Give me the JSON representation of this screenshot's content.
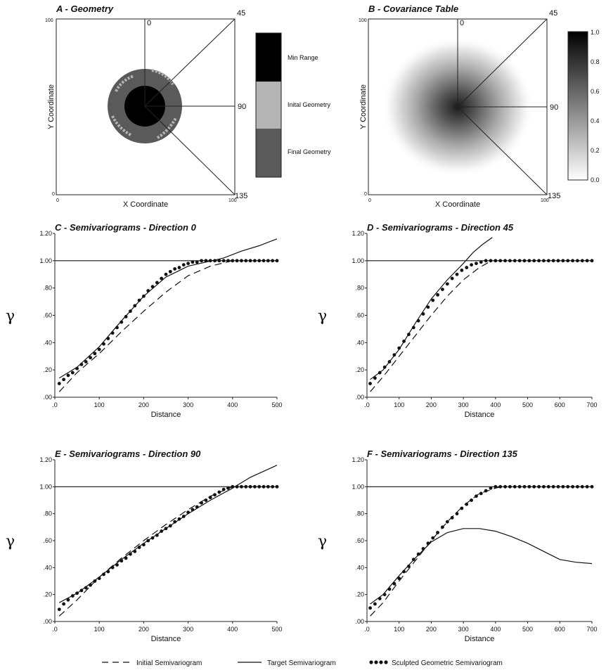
{
  "panels": {
    "A": {
      "title": "A - Geometry",
      "xlabel": "X Coordinate",
      "ylabel": "Y Coordinate",
      "corner_labels": {
        "bottom_left": "0",
        "top_left": "100",
        "bottom_right": "100"
      },
      "direction_labels": [
        "0",
        "45",
        "90",
        "135"
      ],
      "legend": [
        {
          "label": "Min Range",
          "color": "#000000"
        },
        {
          "label": "Inital Geometry",
          "color": "#b4b4b4"
        },
        {
          "label": "Final Geometry",
          "color": "#5a5a5a"
        }
      ]
    },
    "B": {
      "title": "B - Covariance Table",
      "xlabel": "X Coordinate",
      "ylabel": "Y Coordinate",
      "corner_labels": {
        "bottom_left": "0",
        "top_left": "100",
        "bottom_right": "100"
      },
      "direction_labels": [
        "0",
        "45",
        "90",
        "135"
      ],
      "colorbar_ticks": [
        "1.0",
        "0.8",
        "0.6",
        "0.4",
        "0.2",
        "0.0"
      ]
    }
  },
  "chart_data": [
    {
      "type": "line",
      "title": "C - Semivariograms - Direction 0",
      "xlabel": "Distance",
      "ylabel": "γ",
      "xlim": [
        0,
        500
      ],
      "ylim": [
        0,
        1.2
      ],
      "xticks": [
        ".0",
        "100",
        "200",
        "300",
        "400",
        "500"
      ],
      "yticks": [
        ".00",
        ".20",
        ".40",
        ".60",
        ".80",
        "1.00",
        "1.20"
      ],
      "sill": 1.0,
      "series": [
        {
          "name": "Initial Semivariogram",
          "style": "dashed",
          "x": [
            10,
            50,
            100,
            150,
            200,
            250,
            300,
            350,
            400,
            410
          ],
          "y": [
            0.04,
            0.18,
            0.32,
            0.48,
            0.63,
            0.77,
            0.89,
            0.96,
            1.0,
            1.0
          ]
        },
        {
          "name": "Target Semivariogram",
          "style": "solid",
          "x": [
            10,
            50,
            100,
            150,
            200,
            250,
            300,
            340,
            380,
            420,
            460,
            500
          ],
          "y": [
            0.14,
            0.22,
            0.37,
            0.56,
            0.74,
            0.88,
            0.96,
            0.99,
            1.02,
            1.07,
            1.11,
            1.16
          ]
        },
        {
          "name": "Sculpted Geometric Semivariogram",
          "style": "dots",
          "x": [
            10,
            20,
            30,
            40,
            50,
            60,
            70,
            80,
            90,
            100,
            110,
            120,
            130,
            140,
            150,
            160,
            170,
            180,
            190,
            200,
            210,
            220,
            230,
            240,
            250,
            260,
            270,
            280,
            290,
            300,
            310,
            320,
            330,
            340,
            350,
            360,
            370,
            380,
            390,
            400,
            410,
            420,
            430,
            440,
            450,
            460,
            470,
            480,
            490,
            500
          ],
          "y": [
            0.1,
            0.13,
            0.16,
            0.18,
            0.21,
            0.24,
            0.26,
            0.29,
            0.32,
            0.35,
            0.39,
            0.43,
            0.47,
            0.51,
            0.55,
            0.59,
            0.63,
            0.67,
            0.71,
            0.74,
            0.78,
            0.81,
            0.84,
            0.87,
            0.9,
            0.92,
            0.94,
            0.95,
            0.97,
            0.98,
            0.99,
            0.99,
            1.0,
            1.0,
            1.0,
            1.0,
            1.0,
            1.0,
            1.0,
            1.0,
            1.0,
            1.0,
            1.0,
            1.0,
            1.0,
            1.0,
            1.0,
            1.0,
            1.0,
            1.0
          ]
        }
      ]
    },
    {
      "type": "line",
      "title": "D - Semivariograms - Direction 45",
      "xlabel": "Distance",
      "ylabel": "γ",
      "xlim": [
        0,
        700
      ],
      "ylim": [
        0,
        1.2
      ],
      "xticks": [
        ".0",
        "100",
        "200",
        "300",
        "400",
        "500",
        "600",
        "700"
      ],
      "yticks": [
        ".00",
        ".20",
        ".40",
        ".60",
        ".80",
        "1.00",
        "1.20"
      ],
      "sill": 1.0,
      "series": [
        {
          "name": "Initial Semivariogram",
          "style": "dashed",
          "x": [
            10,
            50,
            100,
            150,
            200,
            250,
            300,
            350,
            380
          ],
          "y": [
            0.04,
            0.15,
            0.3,
            0.45,
            0.6,
            0.74,
            0.86,
            0.95,
            0.99
          ]
        },
        {
          "name": "Target Semivariogram",
          "style": "solid",
          "x": [
            10,
            50,
            100,
            150,
            200,
            250,
            300,
            330,
            360,
            390
          ],
          "y": [
            0.13,
            0.2,
            0.35,
            0.54,
            0.72,
            0.86,
            0.98,
            1.06,
            1.12,
            1.17
          ]
        },
        {
          "name": "Sculpted Geometric Semivariogram",
          "style": "dots",
          "x": [
            10,
            25,
            40,
            55,
            70,
            85,
            100,
            115,
            130,
            145,
            160,
            175,
            190,
            205,
            220,
            235,
            250,
            265,
            280,
            295,
            310,
            325,
            340,
            355,
            370,
            385,
            400,
            415,
            430,
            445,
            460,
            475,
            490,
            505,
            520,
            535,
            550,
            565,
            580,
            595,
            610,
            625,
            640,
            655,
            670,
            685,
            700
          ],
          "y": [
            0.1,
            0.14,
            0.18,
            0.22,
            0.26,
            0.31,
            0.36,
            0.41,
            0.46,
            0.51,
            0.56,
            0.61,
            0.66,
            0.71,
            0.75,
            0.79,
            0.83,
            0.87,
            0.9,
            0.93,
            0.95,
            0.97,
            0.98,
            0.99,
            1.0,
            1.0,
            1.0,
            1.0,
            1.0,
            1.0,
            1.0,
            1.0,
            1.0,
            1.0,
            1.0,
            1.0,
            1.0,
            1.0,
            1.0,
            1.0,
            1.0,
            1.0,
            1.0,
            1.0,
            1.0,
            1.0,
            1.0
          ]
        }
      ]
    },
    {
      "type": "line",
      "title": "E - Semivariograms - Direction 90",
      "xlabel": "Distance",
      "ylabel": "γ",
      "xlim": [
        0,
        500
      ],
      "ylim": [
        0,
        1.2
      ],
      "xticks": [
        ".0",
        "100",
        "200",
        "300",
        "400",
        "500"
      ],
      "yticks": [
        ".00",
        ".20",
        ".40",
        ".60",
        ".80",
        "1.00",
        "1.20"
      ],
      "sill": 1.0,
      "series": [
        {
          "name": "Initial Semivariogram",
          "style": "dashed",
          "x": [
            10,
            50,
            100,
            150,
            200,
            250,
            300,
            350,
            400
          ],
          "y": [
            0.04,
            0.16,
            0.33,
            0.47,
            0.6,
            0.72,
            0.83,
            0.93,
            1.0
          ]
        },
        {
          "name": "Target Semivariogram",
          "style": "solid",
          "x": [
            10,
            50,
            100,
            150,
            200,
            250,
            300,
            350,
            400,
            420,
            440,
            460,
            480,
            500
          ],
          "y": [
            0.14,
            0.21,
            0.33,
            0.46,
            0.58,
            0.69,
            0.8,
            0.9,
            0.99,
            1.03,
            1.07,
            1.1,
            1.13,
            1.16
          ]
        },
        {
          "name": "Sculpted Geometric Semivariogram",
          "style": "dots",
          "x": [
            10,
            20,
            30,
            40,
            50,
            60,
            70,
            80,
            90,
            100,
            110,
            120,
            130,
            140,
            150,
            160,
            170,
            180,
            190,
            200,
            210,
            220,
            230,
            240,
            250,
            260,
            270,
            280,
            290,
            300,
            310,
            320,
            330,
            340,
            350,
            360,
            370,
            380,
            390,
            400,
            410,
            420,
            430,
            440,
            450,
            460,
            470,
            480,
            490,
            500
          ],
          "y": [
            0.09,
            0.13,
            0.16,
            0.19,
            0.21,
            0.23,
            0.25,
            0.27,
            0.3,
            0.32,
            0.35,
            0.37,
            0.4,
            0.42,
            0.45,
            0.47,
            0.5,
            0.52,
            0.55,
            0.57,
            0.6,
            0.62,
            0.64,
            0.67,
            0.69,
            0.71,
            0.74,
            0.76,
            0.78,
            0.81,
            0.83,
            0.85,
            0.88,
            0.9,
            0.92,
            0.94,
            0.96,
            0.98,
            0.99,
            1.0,
            1.0,
            1.0,
            1.0,
            1.0,
            1.0,
            1.0,
            1.0,
            1.0,
            1.0,
            1.0
          ]
        }
      ]
    },
    {
      "type": "line",
      "title": "F - Semivariograms - Direction 135",
      "xlabel": "Distance",
      "ylabel": "γ",
      "xlim": [
        0,
        700
      ],
      "ylim": [
        0,
        1.2
      ],
      "xticks": [
        ".0",
        "100",
        "200",
        "300",
        "400",
        "500",
        "600",
        "700"
      ],
      "yticks": [
        ".00",
        ".20",
        ".40",
        ".60",
        ".80",
        "1.00",
        "1.20"
      ],
      "sill": 1.0,
      "series": [
        {
          "name": "Initial Semivariogram",
          "style": "dashed",
          "x": [
            10,
            50,
            100,
            150,
            200,
            250,
            300,
            350,
            400,
            420
          ],
          "y": [
            0.04,
            0.14,
            0.3,
            0.45,
            0.6,
            0.74,
            0.86,
            0.95,
            0.99,
            1.0
          ]
        },
        {
          "name": "Target Semivariogram",
          "style": "solid",
          "x": [
            10,
            50,
            100,
            150,
            200,
            250,
            300,
            350,
            400,
            450,
            500,
            550,
            600,
            650,
            700
          ],
          "y": [
            0.13,
            0.2,
            0.34,
            0.47,
            0.59,
            0.66,
            0.69,
            0.69,
            0.67,
            0.63,
            0.58,
            0.52,
            0.46,
            0.44,
            0.43
          ]
        },
        {
          "name": "Sculpted Geometric Semivariogram",
          "style": "dots",
          "x": [
            10,
            25,
            40,
            55,
            70,
            85,
            100,
            115,
            130,
            145,
            160,
            175,
            190,
            205,
            220,
            235,
            250,
            265,
            280,
            295,
            310,
            325,
            340,
            355,
            370,
            385,
            400,
            415,
            430,
            445,
            460,
            475,
            490,
            505,
            520,
            535,
            550,
            565,
            580,
            595,
            610,
            625,
            640,
            655,
            670,
            685,
            700
          ],
          "y": [
            0.1,
            0.13,
            0.17,
            0.2,
            0.24,
            0.28,
            0.32,
            0.37,
            0.41,
            0.46,
            0.5,
            0.54,
            0.58,
            0.62,
            0.66,
            0.7,
            0.74,
            0.77,
            0.8,
            0.84,
            0.87,
            0.9,
            0.93,
            0.95,
            0.97,
            0.99,
            1.0,
            1.0,
            1.0,
            1.0,
            1.0,
            1.0,
            1.0,
            1.0,
            1.0,
            1.0,
            1.0,
            1.0,
            1.0,
            1.0,
            1.0,
            1.0,
            1.0,
            1.0,
            1.0,
            1.0,
            1.0
          ]
        }
      ]
    }
  ],
  "legend": [
    {
      "label": "Initial Semivariogram",
      "style": "dashed"
    },
    {
      "label": "Target Semivariogram",
      "style": "solid"
    },
    {
      "label": "Sculpted Geometric Semivariogram",
      "style": "dots"
    }
  ]
}
